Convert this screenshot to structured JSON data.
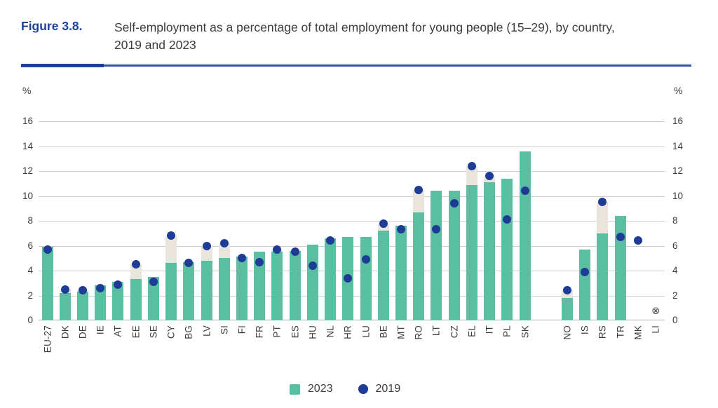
{
  "figure": {
    "label": "Figure 3.8.",
    "title_line1": "Self-employment as a percentage of total employment for young people (15–29), by country,",
    "title_line2": "2019 and 2023"
  },
  "axes": {
    "unit_left": "%",
    "unit_right": "%",
    "y_ticks": [
      0,
      2,
      4,
      6,
      8,
      10,
      12,
      14,
      16
    ]
  },
  "legend": [
    {
      "label": "2023",
      "marker": "square"
    },
    {
      "label": "2019",
      "marker": "circle"
    }
  ],
  "na_symbol": "⊗",
  "colors": {
    "accent_blue": "#1E429B",
    "rule_blue": "#2F58AC",
    "bar_2023": "#5ABEA0",
    "dot_2019": "#1E3C96",
    "bar_2019_bg": "#E9E5DC",
    "grid": "#CDCDCD",
    "axis": "#ACACAC",
    "text": "#3C3C3B"
  },
  "chart_data": {
    "type": "bar",
    "title": "Self-employment as a percentage of total employment for young people (15–29), by country, 2019 and 2023",
    "xlabel": "",
    "ylabel": "%",
    "ylim": [
      0,
      16
    ],
    "grid": true,
    "legend_position": "bottom",
    "gap_before": "NO",
    "categories": [
      "EU-27",
      "DK",
      "DE",
      "IE",
      "AT",
      "EE",
      "SE",
      "CY",
      "BG",
      "LV",
      "SI",
      "FI",
      "FR",
      "PT",
      "ES",
      "HU",
      "NL",
      "HR",
      "LU",
      "BE",
      "MT",
      "RO",
      "LT",
      "CZ",
      "EL",
      "IT",
      "PL",
      "SK",
      "NO",
      "IS",
      "RS",
      "TR",
      "MK",
      "LI"
    ],
    "series": [
      {
        "name": "2023",
        "style": "bar",
        "color": "#5ABEA0",
        "values": [
          5.9,
          2.2,
          2.3,
          2.8,
          3.1,
          3.3,
          3.5,
          4.6,
          4.7,
          4.8,
          5.0,
          5.1,
          5.5,
          5.5,
          5.6,
          6.1,
          6.6,
          6.7,
          6.7,
          7.2,
          7.6,
          8.7,
          10.4,
          10.4,
          10.9,
          11.1,
          11.4,
          13.6,
          1.8,
          5.7,
          7.0,
          8.4,
          null,
          null
        ]
      },
      {
        "name": "2019",
        "style": "point",
        "color": "#1E3C96",
        "values": [
          5.7,
          2.5,
          2.4,
          2.6,
          2.9,
          4.5,
          3.1,
          6.8,
          4.6,
          6.0,
          6.2,
          5.0,
          4.7,
          5.7,
          5.5,
          4.4,
          6.4,
          3.4,
          4.9,
          7.8,
          7.3,
          10.5,
          7.3,
          9.4,
          12.4,
          11.6,
          8.1,
          10.4,
          2.4,
          3.9,
          9.5,
          6.7,
          6.4,
          null
        ]
      }
    ],
    "background_bar_note": "a beige bar up to the 2019 value is drawn behind the 2023 bar where 2019 exceeds 2023",
    "annotations": [
      {
        "category": "LI",
        "symbol": "⊗"
      }
    ]
  }
}
